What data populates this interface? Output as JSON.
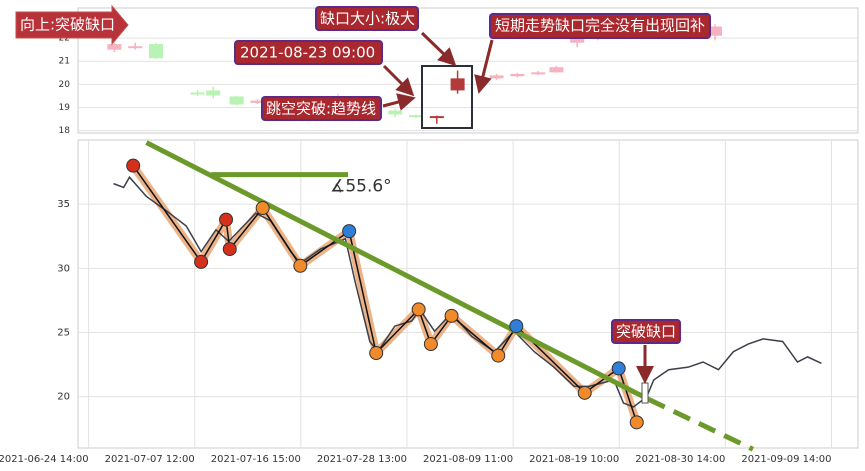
{
  "chart_data": [
    {
      "type": "candlestick",
      "xlim": [
        0,
        30
      ],
      "ylim": [
        17.9,
        23.3
      ],
      "yticks": [
        18,
        19,
        20,
        21,
        22
      ],
      "grid": true,
      "x": [
        1.4,
        2.2,
        3.0,
        4.6,
        5.2,
        6.1,
        6.9,
        10.0,
        12.2,
        13.0,
        13.8,
        14.6,
        16.1,
        16.9,
        17.7,
        18.4,
        19.2,
        20.0,
        24.5
      ],
      "open": [
        21.5,
        21.6,
        21.74,
        19.65,
        19.74,
        19.48,
        19.2,
        19.48,
        18.87,
        18.67,
        18.58,
        19.74,
        20.26,
        20.35,
        20.45,
        20.52,
        21.8,
        22.0,
        22.1
      ],
      "close": [
        21.74,
        21.65,
        21.13,
        19.6,
        19.52,
        19.13,
        19.3,
        19.22,
        18.7,
        18.62,
        18.63,
        20.26,
        20.39,
        20.45,
        20.52,
        20.74,
        22.0,
        22.1,
        22.5
      ],
      "high": [
        21.8,
        21.8,
        21.8,
        19.75,
        19.9,
        19.5,
        19.35,
        19.6,
        18.95,
        18.7,
        18.65,
        20.6,
        20.45,
        20.5,
        20.58,
        20.8,
        22.1,
        22.2,
        22.6
      ],
      "low": [
        21.4,
        21.5,
        21.1,
        19.5,
        19.4,
        19.1,
        19.15,
        19.1,
        18.6,
        18.55,
        18.3,
        19.6,
        20.2,
        20.3,
        20.4,
        20.5,
        21.6,
        21.9,
        21.9
      ],
      "colors": [
        "#f6b3bf",
        "#f6b3bf",
        "#b9f3b4",
        "#b9f3b4",
        "#b9f3b4",
        "#b9f3b4",
        "#f6b3bf",
        "#b9f3b4",
        "#b9f3b4",
        "#b9f3b4",
        "#b23a3a",
        "#b23a3a",
        "#f6b3bf",
        "#f6b3bf",
        "#f6b3bf",
        "#f6b3bf",
        "#f6b3bf",
        "#f6b3bf",
        "#f6b3bf"
      ],
      "annotations": [
        "向上:突破缺口",
        "缺口大小:极大",
        "2021-08-23 09:00",
        "跳空突破:趋势线",
        "短期走势缺口完全没有出现回补"
      ]
    },
    {
      "type": "line",
      "xlim": [
        -2,
        145
      ],
      "ylim": [
        16,
        40
      ],
      "yticks": [
        20,
        25,
        30,
        35
      ],
      "grid": true,
      "xticks": [
        {
          "value": 0,
          "label": "2021-06-24 14:00"
        },
        {
          "value": 20,
          "label": "2021-07-07 12:00"
        },
        {
          "value": 40,
          "label": "2021-07-16 15:00"
        },
        {
          "value": 60,
          "label": "2021-07-28 13:00"
        },
        {
          "value": 80,
          "label": "2021-08-09 11:00"
        },
        {
          "value": 100,
          "label": "2021-08-19 10:00"
        },
        {
          "value": 120,
          "label": "2021-08-30 14:00"
        },
        {
          "value": 140,
          "label": "2021-09-09 14:00"
        }
      ],
      "price": {
        "color": "#3a3f4a",
        "x": [
          4.7,
          6.6,
          7.7,
          10.9,
          14.6,
          18.4,
          21.2,
          24.0,
          26.4,
          31.5,
          34.3,
          38.1,
          39.9,
          43.7,
          48.4,
          50.2,
          53.0,
          54.5,
          57.7,
          60.9,
          62.4,
          65.2,
          68.4,
          72.2,
          76.5,
          80.2,
          84.0,
          87.7,
          91.5,
          94.3,
          99.0,
          100.8,
          102.7,
          105.2,
          106.5,
          109.3,
          113.0,
          115.8,
          118.7,
          121.5,
          124.3,
          127.1,
          130.8,
          133.6,
          135.5,
          138.1
        ],
        "values": [
          36.6,
          36.3,
          37.1,
          35.6,
          34.5,
          33.3,
          31.3,
          33.0,
          32.1,
          34.3,
          33.7,
          31.3,
          30.4,
          31.5,
          32.3,
          29.0,
          24.3,
          23.5,
          25.5,
          25.9,
          26.8,
          25.1,
          26.5,
          24.7,
          23.5,
          25.1,
          23.5,
          22.3,
          20.8,
          20.8,
          21.3,
          19.5,
          19.2,
          20.0,
          21.3,
          22.1,
          22.3,
          22.7,
          22.1,
          23.5,
          24.1,
          24.5,
          24.3,
          22.7,
          23.1,
          22.6
        ]
      },
      "wave": {
        "color": "#e9a573",
        "x": [
          8.4,
          21.2,
          25.9,
          26.6,
          32.8,
          39.9,
          49.1,
          54.2,
          62.2,
          64.5,
          68.4,
          77.2,
          80.6,
          93.5,
          99.9,
          103.3
        ],
        "values": [
          38.0,
          30.5,
          33.8,
          31.5,
          34.7,
          30.2,
          32.9,
          23.4,
          26.8,
          24.1,
          26.3,
          23.2,
          25.5,
          20.3,
          22.2,
          18.0
        ],
        "colors": [
          "#d4301c",
          "#d4301c",
          "#d4301c",
          "#d4301c",
          "#f08a2a",
          "#f08a2a",
          "#2f7fd8",
          "#f08a2a",
          "#f08a2a",
          "#f08a2a",
          "#f08a2a",
          "#f08a2a",
          "#2f7fd8",
          "#f08a2a",
          "#2f7fd8",
          "#f08a2a"
        ]
      },
      "trendline": {
        "color": "#6b9a2a",
        "x": [
          10.9,
          105.5
        ],
        "values": [
          39.8,
          19.8
        ]
      },
      "trend_extension": {
        "color": "#6b9a2a",
        "x": [
          105.5,
          125.2
        ],
        "values": [
          19.8,
          15.9
        ]
      },
      "angle_line": {
        "color": "#6b9a2a",
        "x": [
          23.1,
          48.9
        ],
        "values": [
          37.3,
          37.3
        ]
      },
      "angle_label": "∡55.6°",
      "annotations": [
        "突破缺口"
      ]
    }
  ]
}
